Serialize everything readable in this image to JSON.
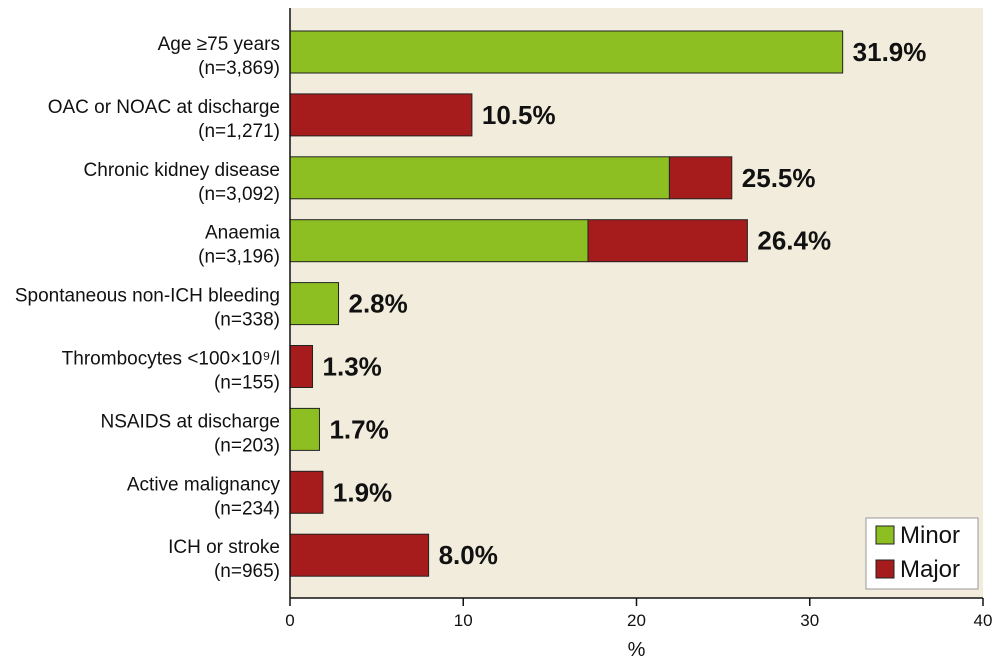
{
  "chart_data": {
    "type": "bar",
    "orientation": "horizontal",
    "stacked": true,
    "title": "",
    "xlabel": "%",
    "ylabel": "",
    "xlim": [
      0,
      40
    ],
    "xticks": [
      0,
      10,
      20,
      30,
      40
    ],
    "grid": false,
    "legend_position": "bottom-right",
    "series": [
      {
        "name": "Minor",
        "color": "#8dbf22"
      },
      {
        "name": "Major",
        "color": "#a61c1c"
      }
    ],
    "categories": [
      {
        "line1": "Age ≥75 years",
        "line2": "(n=3,869)",
        "minor": 31.9,
        "major": 0,
        "total_label": "31.9%"
      },
      {
        "line1": "OAC or NOAC at discharge",
        "line2": "(n=1,271)",
        "minor": 0,
        "major": 10.5,
        "total_label": "10.5%"
      },
      {
        "line1": "Chronic kidney disease",
        "line2": "(n=3,092)",
        "minor": 21.9,
        "major": 3.6,
        "total_label": "25.5%"
      },
      {
        "line1": "Anaemia",
        "line2": "(n=3,196)",
        "minor": 17.2,
        "major": 9.2,
        "total_label": "26.4%"
      },
      {
        "line1": "Spontaneous non-ICH bleeding",
        "line2": "(n=338)",
        "minor": 2.8,
        "major": 0,
        "total_label": "2.8%"
      },
      {
        "line1": "Thrombocytes <100×10⁹/l",
        "line2": "(n=155)",
        "minor": 0,
        "major": 1.3,
        "total_label": "1.3%"
      },
      {
        "line1": "NSAIDS at discharge",
        "line2": "(n=203)",
        "minor": 1.7,
        "major": 0,
        "total_label": "1.7%"
      },
      {
        "line1": "Active malignancy",
        "line2": "(n=234)",
        "minor": 0,
        "major": 1.9,
        "total_label": "1.9%"
      },
      {
        "line1": "ICH or stroke",
        "line2": "(n=965)",
        "minor": 0,
        "major": 8.0,
        "total_label": "8.0%"
      }
    ],
    "colors": {
      "plot_background": "#f2ecdc",
      "minor": "#8dbf22",
      "major": "#a61c1c"
    }
  }
}
